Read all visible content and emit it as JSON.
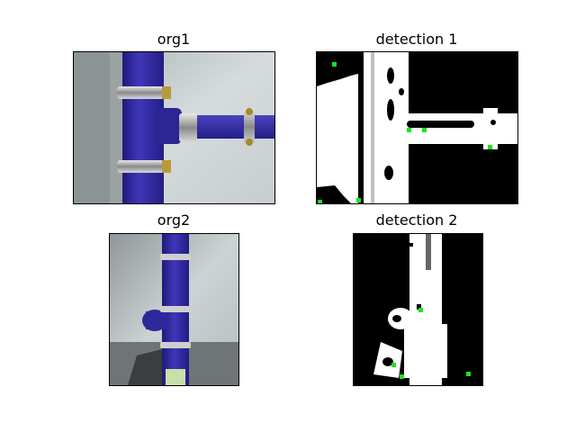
{
  "panels": [
    {
      "title": "org1"
    },
    {
      "title": "detection 1"
    },
    {
      "title": "org2"
    },
    {
      "title": "detection 2"
    }
  ],
  "colors": {
    "pipe_blue": "#3a33a8",
    "wall": "#c8d0d2",
    "mask_white": "#ffffff",
    "mask_black": "#000000",
    "keypoint_green": "#19e619"
  }
}
